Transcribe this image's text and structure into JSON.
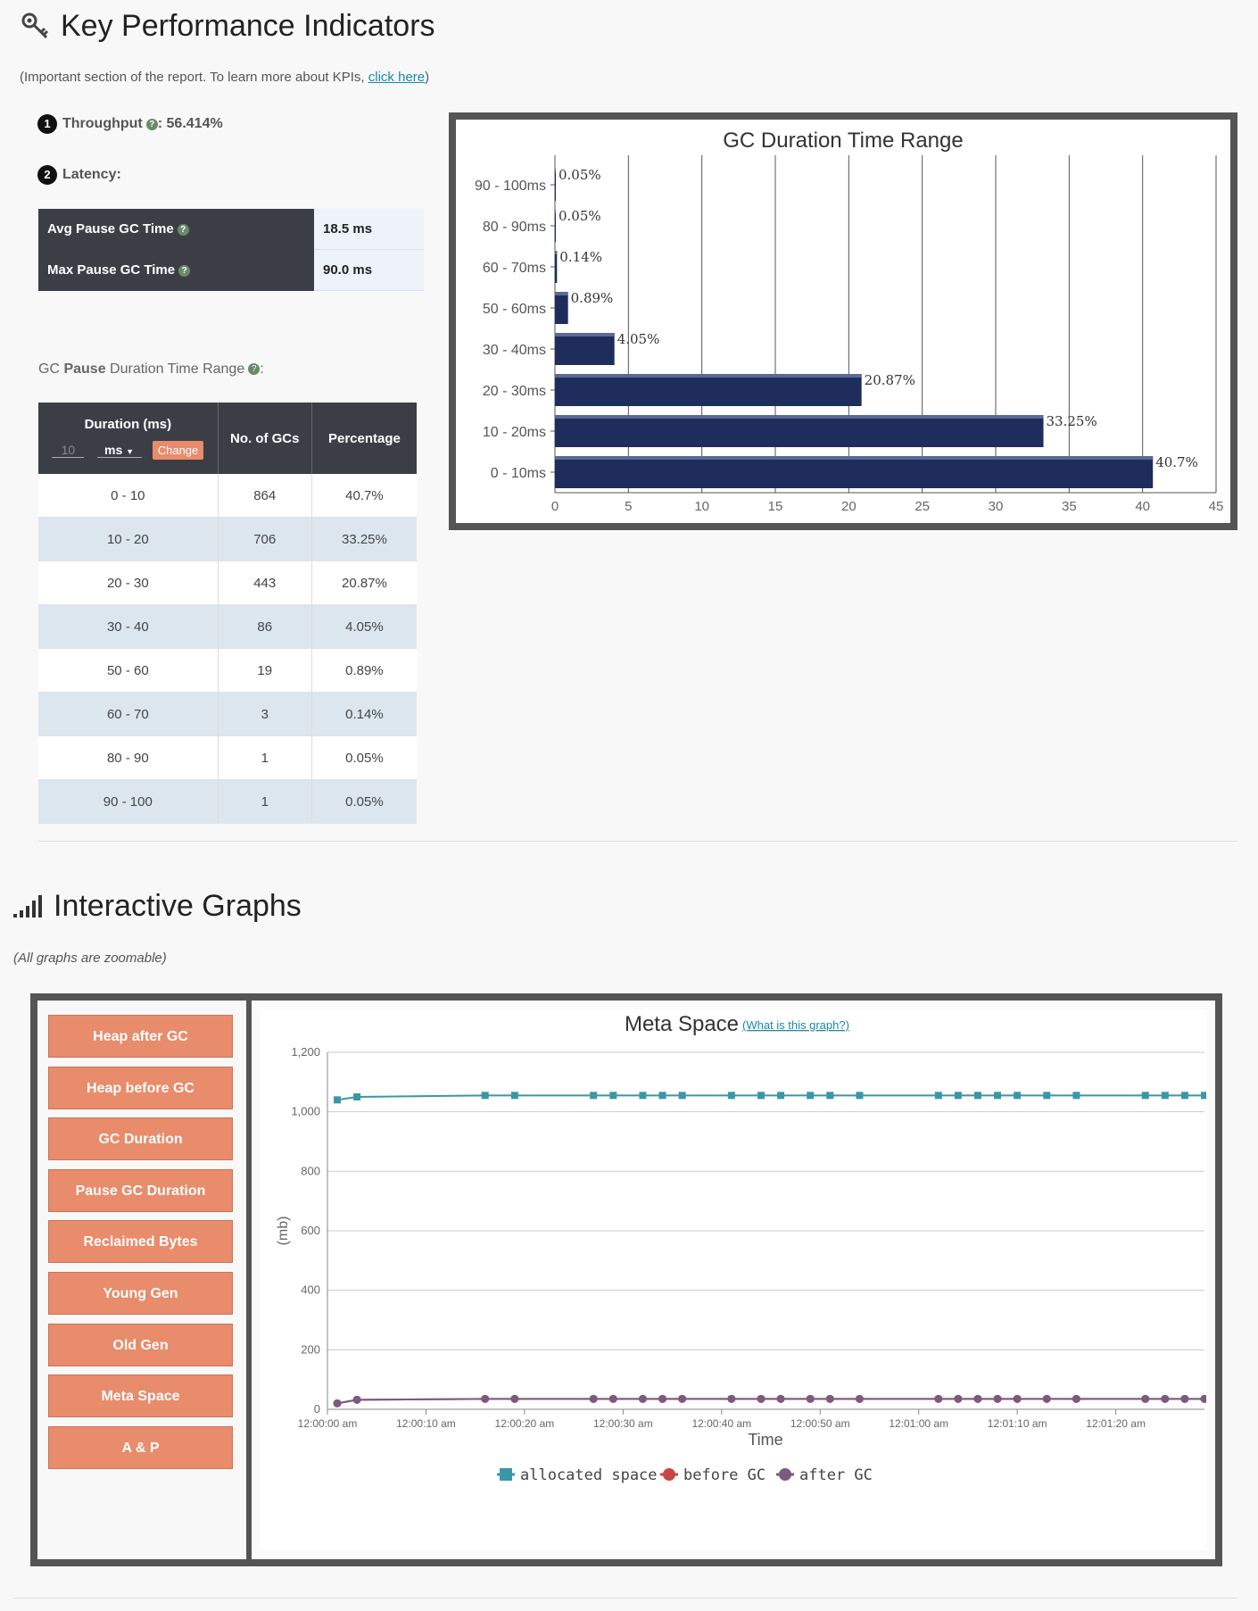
{
  "kpi": {
    "title": "Key Performance Indicators",
    "note_prefix": "(Important section of the report. To learn more about KPIs, ",
    "note_link": "click here",
    "note_suffix": ")",
    "throughput_badge": "1",
    "throughput_label": "Throughput",
    "throughput_value": ": 56.414%",
    "latency_badge": "2",
    "latency_label": "Latency:",
    "avg_label": "Avg Pause GC Time",
    "avg_value": "18.5 ms",
    "max_label": "Max Pause GC Time",
    "max_value": "90.0 ms",
    "pause_caption_pre": "GC ",
    "pause_caption_bold": "Pause",
    "pause_caption_post": " Duration Time Range",
    "help_glyph": "?"
  },
  "pause_table": {
    "col_duration": "Duration (ms)",
    "interval_value": "10",
    "unit_value": "ms",
    "change_label": "Change",
    "col_count": "No. of GCs",
    "col_pct": "Percentage",
    "rows": [
      {
        "range": "0 - 10",
        "count": "864",
        "pct": "40.7%"
      },
      {
        "range": "10 - 20",
        "count": "706",
        "pct": "33.25%"
      },
      {
        "range": "20 - 30",
        "count": "443",
        "pct": "20.87%"
      },
      {
        "range": "30 - 40",
        "count": "86",
        "pct": "4.05%"
      },
      {
        "range": "50 - 60",
        "count": "19",
        "pct": "0.89%"
      },
      {
        "range": "60 - 70",
        "count": "3",
        "pct": "0.14%"
      },
      {
        "range": "80 - 90",
        "count": "1",
        "pct": "0.05%"
      },
      {
        "range": "90 - 100",
        "count": "1",
        "pct": "0.05%"
      }
    ]
  },
  "chart_data": [
    {
      "type": "bar",
      "title": "GC Duration Time Range",
      "categories": [
        "90 - 100ms",
        "80 - 90ms",
        "60 - 70ms",
        "50 - 60ms",
        "30 - 40ms",
        "20 - 30ms",
        "10 - 20ms",
        "0 - 10ms"
      ],
      "values": [
        0.05,
        0.05,
        0.14,
        0.89,
        4.05,
        20.87,
        33.25,
        40.7
      ],
      "labels": [
        "0.05%",
        "0.05%",
        "0.14%",
        "0.89%",
        "4.05%",
        "20.87%",
        "33.25%",
        "40.7%"
      ],
      "xlim": [
        0,
        45
      ],
      "xticks": [
        "0",
        "5",
        "10",
        "15",
        "20",
        "25",
        "30",
        "35",
        "40",
        "45"
      ],
      "color": "#1f2d5c"
    },
    {
      "type": "line",
      "title": "Meta Space",
      "link": "(What is this graph?)",
      "ylabel": "(mb)",
      "xlabel": "Time",
      "ylim": [
        0,
        1200
      ],
      "yticks": [
        "0",
        "200",
        "400",
        "600",
        "800",
        "1,000",
        "1,200"
      ],
      "xticks": [
        "12:00:00 am",
        "12:00:10 am",
        "12:00:20 am",
        "12:00:30 am",
        "12:00:40 am",
        "12:00:50 am",
        "12:01:00 am",
        "12:01:10 am",
        "12:01:20 am"
      ],
      "xlim": [
        0,
        89
      ],
      "x": [
        1,
        3,
        16,
        19,
        27,
        29,
        32,
        34,
        36,
        41,
        44,
        46,
        49,
        51,
        54,
        62,
        64,
        66,
        68,
        70,
        73,
        76,
        83,
        85,
        87,
        89
      ],
      "series": [
        {
          "name": "allocated space",
          "color": "#3a97a6",
          "values": [
            1040,
            1050,
            1055,
            1055,
            1055,
            1055,
            1055,
            1055,
            1055,
            1055,
            1055,
            1055,
            1055,
            1055,
            1055,
            1055,
            1055,
            1055,
            1055,
            1055,
            1055,
            1055,
            1055,
            1055,
            1055,
            1055
          ]
        },
        {
          "name": "before GC",
          "color": "#c94646",
          "values": [
            20,
            32,
            35,
            35,
            35,
            35,
            35,
            35,
            35,
            35,
            35,
            35,
            35,
            35,
            35,
            35,
            35,
            35,
            35,
            35,
            35,
            35,
            35,
            35,
            35,
            35
          ]
        },
        {
          "name": "after GC",
          "color": "#7a5a80",
          "values": [
            20,
            32,
            35,
            35,
            35,
            35,
            35,
            35,
            35,
            35,
            35,
            35,
            35,
            35,
            35,
            35,
            35,
            35,
            35,
            35,
            35,
            35,
            35,
            35,
            35,
            35
          ]
        }
      ]
    }
  ],
  "graphs": {
    "title": "Interactive Graphs",
    "note": "(All graphs are zoomable)",
    "buttons": [
      "Heap after GC",
      "Heap before GC",
      "GC Duration",
      "Pause GC Duration",
      "Reclaimed Bytes",
      "Young Gen",
      "Old Gen",
      "Meta Space",
      "A & P"
    ]
  }
}
